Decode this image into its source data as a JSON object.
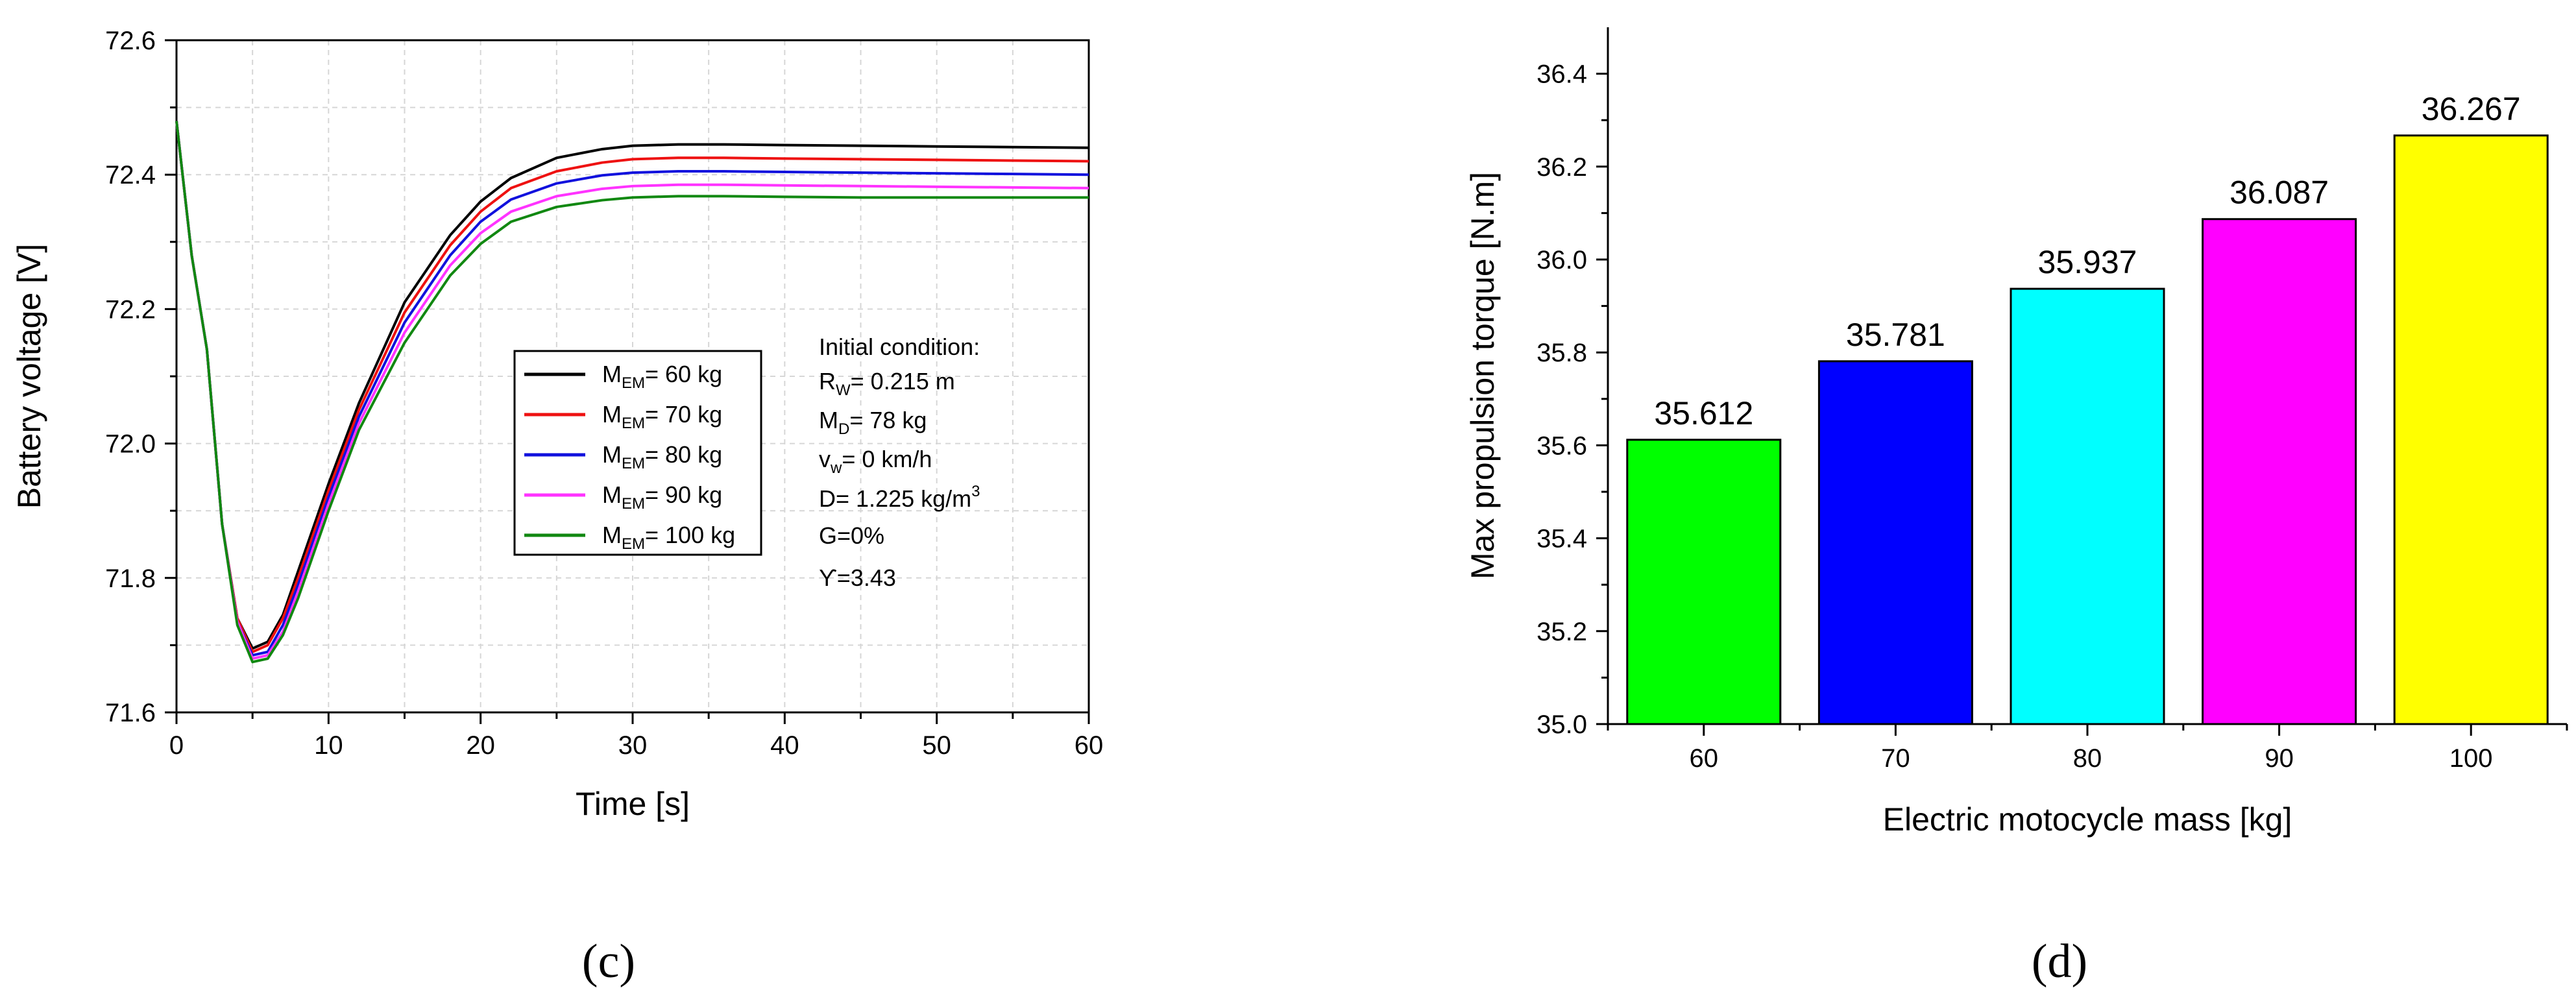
{
  "charts": [
    {
      "type": "line",
      "panel_label": "(c)",
      "xlabel": "Time [s]",
      "ylabel": "Battery voltage [V]",
      "xlim": [
        0,
        60
      ],
      "ylim": [
        71.6,
        72.6
      ],
      "xticks": [
        "0",
        "10",
        "20",
        "30",
        "40",
        "50",
        "60"
      ],
      "yticks": [
        "71.6",
        "71.8",
        "72.0",
        "72.2",
        "72.4",
        "72.6"
      ],
      "grid": true,
      "legend_position": "center",
      "series": [
        {
          "name": "M_EM= 60 kg",
          "name_main": "M",
          "name_sub": "EM",
          "name_rest": "= 60 kg",
          "color": "#000000",
          "x": [
            0,
            1,
            2,
            3,
            4,
            5,
            6,
            7,
            8,
            10,
            12,
            15,
            18,
            20,
            22,
            25,
            28,
            30,
            33,
            36,
            40,
            45,
            50,
            55,
            60
          ],
          "y": [
            72.48,
            72.28,
            72.14,
            71.88,
            71.74,
            71.695,
            71.705,
            71.745,
            71.81,
            71.94,
            72.06,
            72.21,
            72.31,
            72.36,
            72.395,
            72.425,
            72.438,
            72.443,
            72.445,
            72.445,
            72.444,
            72.443,
            72.442,
            72.441,
            72.44
          ]
        },
        {
          "name": "M_EM= 70 kg",
          "name_main": "M",
          "name_sub": "EM",
          "name_rest": "= 70 kg",
          "color": "#ee1111",
          "x": [
            0,
            1,
            2,
            3,
            4,
            5,
            6,
            7,
            8,
            10,
            12,
            15,
            18,
            20,
            22,
            25,
            28,
            30,
            33,
            36,
            40,
            45,
            50,
            55,
            60
          ],
          "y": [
            72.48,
            72.28,
            72.14,
            71.88,
            71.74,
            71.69,
            71.7,
            71.74,
            71.8,
            71.93,
            72.05,
            72.195,
            72.295,
            72.345,
            72.38,
            72.405,
            72.418,
            72.423,
            72.425,
            72.425,
            72.424,
            72.423,
            72.422,
            72.421,
            72.42
          ]
        },
        {
          "name": "M_EM= 80 kg",
          "name_main": "M",
          "name_sub": "EM",
          "name_rest": "= 80 kg",
          "color": "#1111dd",
          "x": [
            0,
            1,
            2,
            3,
            4,
            5,
            6,
            7,
            8,
            10,
            12,
            15,
            18,
            20,
            22,
            25,
            28,
            30,
            33,
            36,
            40,
            45,
            50,
            55,
            60
          ],
          "y": [
            72.48,
            72.28,
            72.14,
            71.88,
            71.735,
            71.685,
            71.69,
            71.73,
            71.79,
            71.92,
            72.04,
            72.18,
            72.28,
            72.33,
            72.363,
            72.387,
            72.399,
            72.403,
            72.405,
            72.405,
            72.404,
            72.403,
            72.402,
            72.401,
            72.4
          ]
        },
        {
          "name": "M_EM= 90 kg",
          "name_main": "M",
          "name_sub": "EM",
          "name_rest": "= 90 kg",
          "color": "#ff33ff",
          "x": [
            0,
            1,
            2,
            3,
            4,
            5,
            6,
            7,
            8,
            10,
            12,
            15,
            18,
            20,
            22,
            25,
            28,
            30,
            33,
            36,
            40,
            45,
            50,
            55,
            60
          ],
          "y": [
            72.48,
            72.28,
            72.14,
            71.88,
            71.735,
            71.68,
            71.685,
            71.72,
            71.78,
            71.91,
            72.03,
            72.165,
            72.265,
            72.313,
            72.345,
            72.368,
            72.379,
            72.383,
            72.385,
            72.385,
            72.384,
            72.383,
            72.382,
            72.381,
            72.38
          ]
        },
        {
          "name": "M_EM= 100 kg",
          "name_main": "M",
          "name_sub": "EM",
          "name_rest": "= 100 kg",
          "color": "#118811",
          "x": [
            0,
            1,
            2,
            3,
            4,
            5,
            6,
            7,
            8,
            10,
            12,
            15,
            18,
            20,
            22,
            25,
            28,
            30,
            33,
            36,
            40,
            45,
            50,
            55,
            60
          ],
          "y": [
            72.48,
            72.28,
            72.14,
            71.88,
            71.73,
            71.675,
            71.68,
            71.715,
            71.77,
            71.9,
            72.02,
            72.15,
            72.25,
            72.297,
            72.33,
            72.352,
            72.362,
            72.366,
            72.368,
            72.368,
            72.367,
            72.366,
            72.366,
            72.366,
            72.366
          ]
        }
      ],
      "annotation": {
        "title": "Initial condition:",
        "lines": [
          {
            "main": "R",
            "sub": "W",
            "sup": "",
            "rest": "= 0.215 m"
          },
          {
            "main": "M",
            "sub": "D",
            "sup": "",
            "rest": "= 78 kg"
          },
          {
            "main": "v",
            "sub": "w",
            "sup": "",
            "rest": "= 0 km/h"
          },
          {
            "main": "D= 1.225 kg/m",
            "sub": "",
            "sup": "3",
            "rest": ""
          },
          {
            "main": "G=0%",
            "sub": "",
            "sup": "",
            "rest": ""
          },
          {
            "main": "ϒ=3.43",
            "sub": "",
            "sup": "",
            "rest": ""
          }
        ]
      }
    },
    {
      "type": "bar",
      "panel_label": "(d)",
      "xlabel": "Electric motocycle mass [kg]",
      "ylabel": "Max propulsion torque [N.m]",
      "ylim": [
        35.0,
        36.5
      ],
      "yticks": [
        "35.0",
        "35.2",
        "35.4",
        "35.6",
        "35.8",
        "36.0",
        "36.2",
        "36.4"
      ],
      "categories": [
        "60",
        "70",
        "80",
        "90",
        "100"
      ],
      "values": [
        35.612,
        35.781,
        35.937,
        36.087,
        36.267
      ],
      "value_labels": [
        "35.612",
        "35.781",
        "35.937",
        "36.087",
        "36.267"
      ],
      "colors": [
        "#00ff00",
        "#0000ff",
        "#00ffff",
        "#ff00ff",
        "#ffff00"
      ],
      "grid": false
    }
  ]
}
